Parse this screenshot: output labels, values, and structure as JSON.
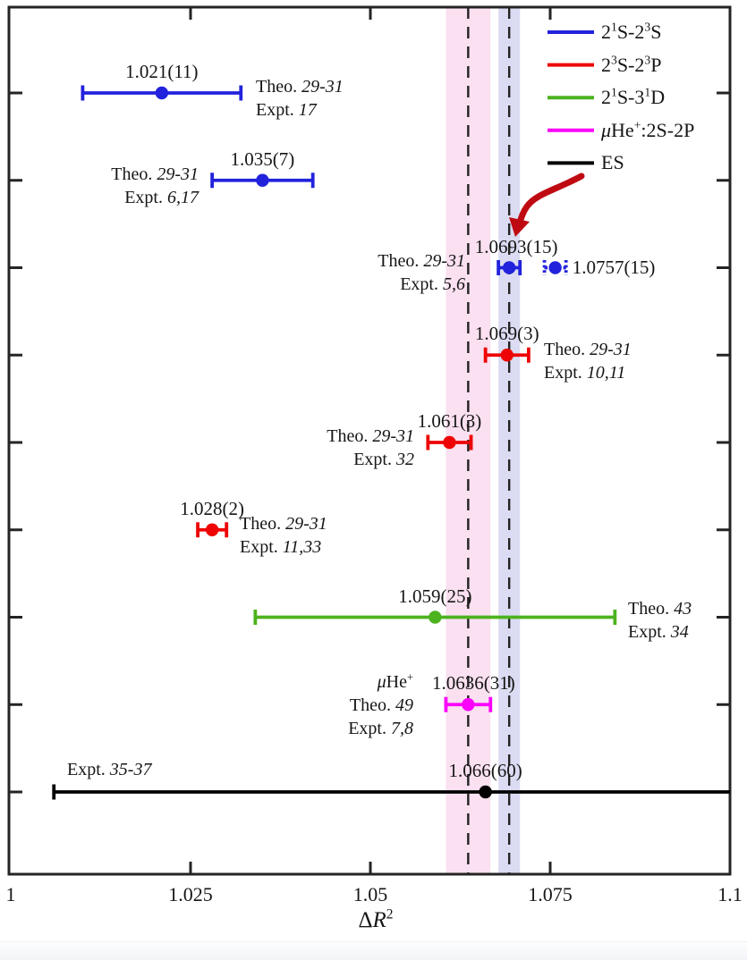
{
  "chart_data": {
    "type": "scatter",
    "title": "",
    "xlabel_rich": "Δ[R]{2}",
    "xlim": [
      1.0,
      1.1
    ],
    "xticks": [
      1.025,
      1.05,
      1.075
    ],
    "xtick_labels": [
      {
        "value": 1.0,
        "text": "1"
      },
      {
        "value": 1.025,
        "text": "1.025"
      },
      {
        "value": 1.05,
        "text": "1.05"
      },
      {
        "value": 1.075,
        "text": "1.075"
      },
      {
        "value": 1.1,
        "text": "1.1"
      }
    ],
    "grid": false,
    "legend_position": "top-right",
    "legend": [
      {
        "label": "2{1}S-2{3}S",
        "color": "#2222dd"
      },
      {
        "label": "2{3}S-2{3}P",
        "color": "#ee0404"
      },
      {
        "label": "2{1}S-3{1}D",
        "color": "#4cb31e"
      },
      {
        "label": "μHe{+}:2S-2P",
        "color": "#fb02fb"
      },
      {
        "label": "ES",
        "color": "#000000"
      }
    ],
    "rows": 9,
    "points": [
      {
        "row": 1,
        "series": "2{1}S-2{3}S",
        "color": "#2222dd",
        "value": 1.021,
        "error": 0.011,
        "value_label": "1.021(11)",
        "style": "solid",
        "ref": {
          "lines": [
            "Theo. [29-31]",
            "Expt. [17]"
          ],
          "align": "left",
          "x": 286,
          "y": 110
        }
      },
      {
        "row": 2,
        "series": "2{1}S-2{3}S",
        "color": "#2222dd",
        "value": 1.035,
        "error": 0.007,
        "value_label": "1.035(7)",
        "style": "solid",
        "ref": {
          "lines": [
            "Theo. [29-31]",
            "Expt. [6,17]"
          ],
          "align": "right",
          "x": 222,
          "y": 208
        }
      },
      {
        "row": 3,
        "series": "2{1}S-2{3}S",
        "color": "#2222dd",
        "value": 1.0693,
        "error": 0.0015,
        "value_label": "1.0693(15)",
        "label_dx": 8,
        "style": "solid",
        "ref": {
          "lines": [
            "Theo. [29-31]",
            "Expt. [5,6]"
          ],
          "align": "right",
          "x": 520,
          "y": 305
        }
      },
      {
        "row": 3,
        "series": "2{1}S-2{3}S",
        "color": "#2222dd",
        "value": 1.0757,
        "error": 0.0015,
        "value_label": "1.0757(15)",
        "style": "dotted",
        "label_side": "right"
      },
      {
        "row": 4,
        "series": "2{3}S-2{3}P",
        "color": "#ee0404",
        "value": 1.069,
        "error": 0.003,
        "value_label": "1.069(3)",
        "style": "solid",
        "ref": {
          "lines": [
            "Theo. [29-31]",
            "Expt. [10,11]"
          ],
          "align": "left",
          "x": 608,
          "y": 404
        }
      },
      {
        "row": 5,
        "series": "2{3}S-2{3}P",
        "color": "#ee0404",
        "value": 1.061,
        "error": 0.003,
        "value_label": "1.061(3)",
        "style": "solid",
        "ref": {
          "lines": [
            "Theo. [29-31]",
            "Expt. [32]"
          ],
          "align": "right",
          "x": 463,
          "y": 501
        }
      },
      {
        "row": 6,
        "series": "2{3}S-2{3}P",
        "color": "#ee0404",
        "value": 1.028,
        "error": 0.002,
        "value_label": "1.028(2)",
        "style": "solid",
        "ref": {
          "lines": [
            "Theo. [29-31]",
            "Expt. [11,33]"
          ],
          "align": "left",
          "x": 268,
          "y": 599
        }
      },
      {
        "row": 7,
        "series": "2{1}S-3{1}D",
        "color": "#4cb31e",
        "value": 1.059,
        "error": 0.025,
        "value_label": "1.059(25)",
        "style": "solid",
        "ref": {
          "lines": [
            "Theo. [43]",
            "Expt. [34]"
          ],
          "align": "left",
          "x": 702,
          "y": 694
        }
      },
      {
        "row": 8,
        "series": "μHe{+}:2S-2P",
        "color": "#fb02fb",
        "value": 1.0636,
        "error": 0.0031,
        "value_label": "1.0636(31)",
        "label_dx": 6,
        "style": "solid",
        "ref": {
          "lines": [
            "μHe{+}",
            "Theo. [49]",
            "Expt. [7,8]"
          ],
          "align": "right",
          "x": 462,
          "y": 789
        }
      },
      {
        "row": 9,
        "series": "ES",
        "color": "#000000",
        "value": 1.066,
        "error": 0.06,
        "value_label": "1.066(60)",
        "style": "solid",
        "ref": {
          "lines": [
            "Expt. [35-37]"
          ],
          "align": "left",
          "x": 75,
          "y": 861
        }
      }
    ],
    "dashed_reference_lines": [
      {
        "name": "muhe-central-value",
        "value": 1.0636
      },
      {
        "name": "he-central-value",
        "value": 1.0693
      }
    ],
    "uncertainty_bands": [
      {
        "name": "muhe-band",
        "range": [
          1.0605,
          1.0667
        ],
        "color": "#fae0f0"
      },
      {
        "name": "he-band",
        "range": [
          1.0678,
          1.0708
        ],
        "color": "#dbdcf3"
      }
    ],
    "annotation_arrow": {
      "points_to": "1.0693(15)",
      "color": "#bf0a12"
    }
  }
}
